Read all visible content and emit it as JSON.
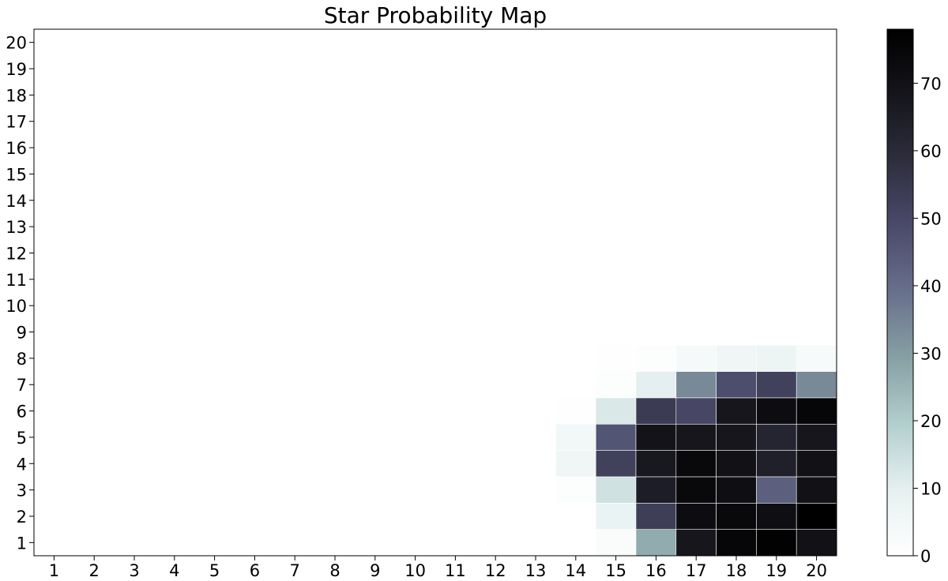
{
  "chart_data": {
    "type": "heatmap",
    "title": "Star Probability Map",
    "xlabel": "",
    "ylabel": "",
    "x_categories": [
      1,
      2,
      3,
      4,
      5,
      6,
      7,
      8,
      9,
      10,
      11,
      12,
      13,
      14,
      15,
      16,
      17,
      18,
      19,
      20
    ],
    "y_categories": [
      1,
      2,
      3,
      4,
      5,
      6,
      7,
      8,
      9,
      10,
      11,
      12,
      13,
      14,
      15,
      16,
      17,
      18,
      19,
      20
    ],
    "colormap": "bone_r",
    "value_range": [
      0,
      78
    ],
    "colorbar_ticks": [
      0,
      10,
      20,
      30,
      40,
      50,
      60,
      70
    ],
    "grid": false,
    "cells_note": "values listed as [x, y, value]; all unlisted cells are 0",
    "cells": [
      [
        14,
        3,
        1
      ],
      [
        14,
        4,
        6
      ],
      [
        14,
        5,
        5
      ],
      [
        14,
        6,
        0.5
      ],
      [
        15,
        1,
        2
      ],
      [
        15,
        2,
        8
      ],
      [
        15,
        3,
        14
      ],
      [
        15,
        4,
        52
      ],
      [
        15,
        5,
        46
      ],
      [
        15,
        6,
        12
      ],
      [
        15,
        7,
        1
      ],
      [
        15,
        8,
        0.5
      ],
      [
        16,
        1,
        27
      ],
      [
        16,
        2,
        53
      ],
      [
        16,
        3,
        65
      ],
      [
        16,
        4,
        67
      ],
      [
        16,
        5,
        69
      ],
      [
        16,
        6,
        54
      ],
      [
        16,
        7,
        10
      ],
      [
        16,
        8,
        1
      ],
      [
        17,
        1,
        68
      ],
      [
        17,
        2,
        72
      ],
      [
        17,
        3,
        74
      ],
      [
        17,
        4,
        74
      ],
      [
        17,
        5,
        68
      ],
      [
        17,
        6,
        50
      ],
      [
        17,
        7,
        34
      ],
      [
        17,
        8,
        4
      ],
      [
        18,
        1,
        75
      ],
      [
        18,
        2,
        74
      ],
      [
        18,
        3,
        71
      ],
      [
        18,
        4,
        70
      ],
      [
        18,
        5,
        68
      ],
      [
        18,
        6,
        68
      ],
      [
        18,
        7,
        48
      ],
      [
        18,
        8,
        6
      ],
      [
        19,
        1,
        77
      ],
      [
        19,
        2,
        71
      ],
      [
        19,
        3,
        43
      ],
      [
        19,
        4,
        64
      ],
      [
        19,
        5,
        62
      ],
      [
        19,
        6,
        72
      ],
      [
        19,
        7,
        52
      ],
      [
        19,
        8,
        7
      ],
      [
        20,
        1,
        70
      ],
      [
        20,
        2,
        78
      ],
      [
        20,
        3,
        70
      ],
      [
        20,
        4,
        70
      ],
      [
        20,
        5,
        68
      ],
      [
        20,
        6,
        75
      ],
      [
        20,
        7,
        34
      ],
      [
        20,
        8,
        3
      ]
    ]
  }
}
